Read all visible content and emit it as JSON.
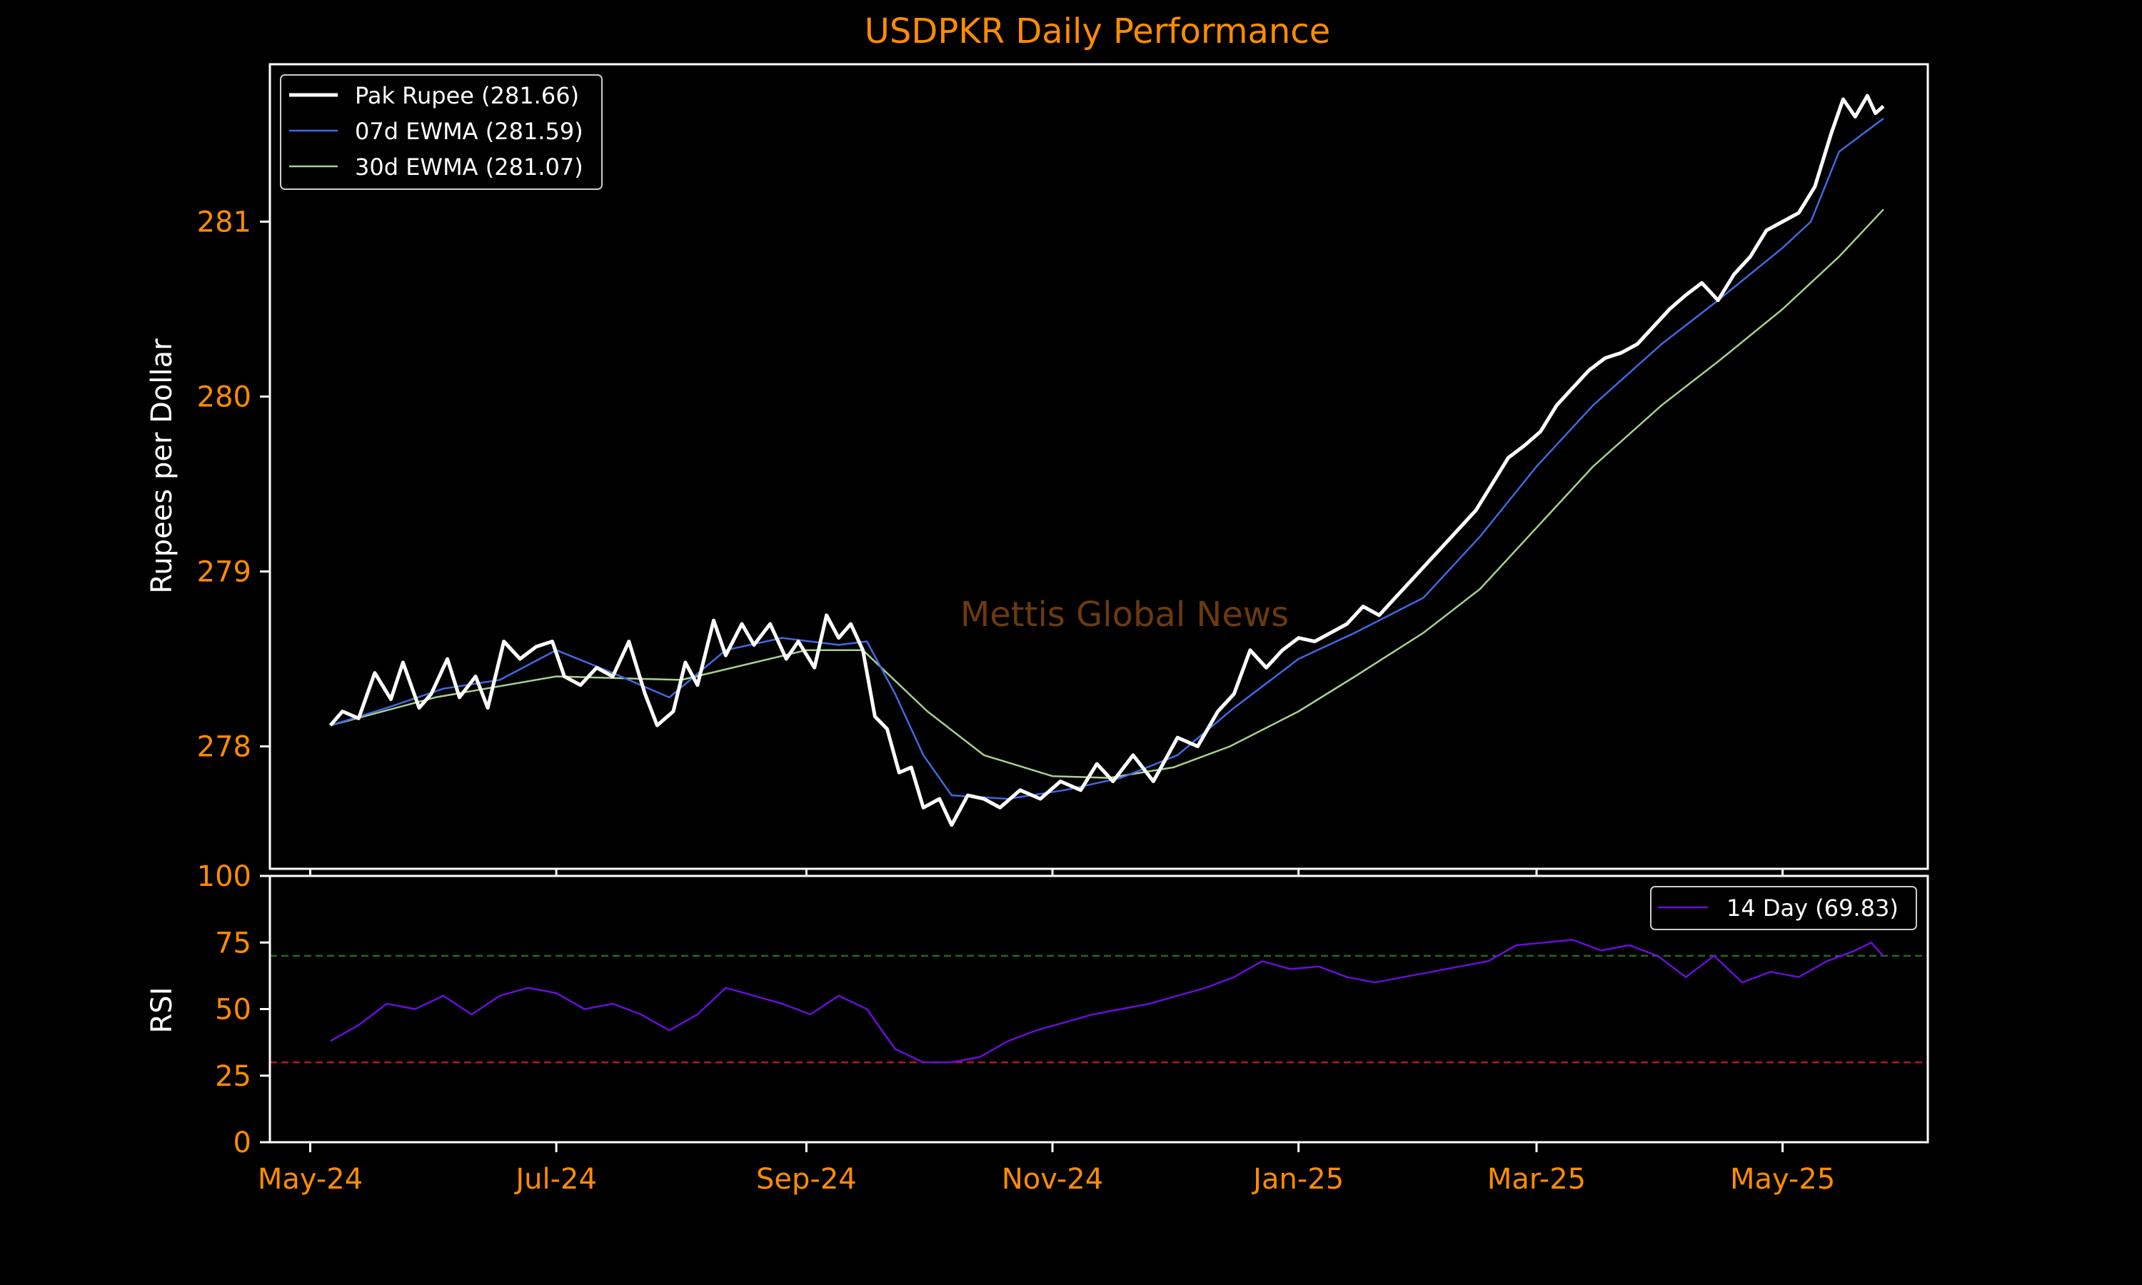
{
  "colors": {
    "background": "#000000",
    "accent": "#ff8c00",
    "axis": "#ffffff",
    "price": "#ffffff",
    "ewma7": "#4169e1",
    "ewma30": "#a8d08d",
    "rsi": "#6a0dd9",
    "overbought": "#1f6b1f",
    "oversold": "#c0102a",
    "watermark": "#6b3a10"
  },
  "chart_data": [
    {
      "type": "line",
      "title": "USDPKR Daily Performance",
      "ylabel": "Rupees per Dollar",
      "ylim": [
        277.3,
        281.9
      ],
      "y_ticks": [
        278,
        279,
        280,
        281
      ],
      "grid": false,
      "legend_position": "top-left",
      "x_type": "date",
      "x_range": [
        "2024-04-21",
        "2025-06-06"
      ],
      "x_ticks": [
        {
          "date": "2024-05-01",
          "label": "May-24"
        },
        {
          "date": "2024-07-01",
          "label": "Jul-24"
        },
        {
          "date": "2024-09-01",
          "label": "Sep-24"
        },
        {
          "date": "2024-11-01",
          "label": "Nov-24"
        },
        {
          "date": "2025-01-01",
          "label": "Jan-25"
        },
        {
          "date": "2025-03-01",
          "label": "Mar-25"
        },
        {
          "date": "2025-05-01",
          "label": "May-25"
        }
      ],
      "series": [
        {
          "name": "Pak Rupee (281.66)",
          "points": [
            [
              "2024-05-06",
              278.12
            ],
            [
              "2024-05-09",
              278.2
            ],
            [
              "2024-05-13",
              278.16
            ],
            [
              "2024-05-17",
              278.42
            ],
            [
              "2024-05-21",
              278.27
            ],
            [
              "2024-05-24",
              278.48
            ],
            [
              "2024-05-28",
              278.22
            ],
            [
              "2024-05-31",
              278.3
            ],
            [
              "2024-06-04",
              278.5
            ],
            [
              "2024-06-07",
              278.28
            ],
            [
              "2024-06-11",
              278.4
            ],
            [
              "2024-06-14",
              278.22
            ],
            [
              "2024-06-18",
              278.6
            ],
            [
              "2024-06-22",
              278.5
            ],
            [
              "2024-06-26",
              278.57
            ],
            [
              "2024-06-30",
              278.6
            ],
            [
              "2024-07-03",
              278.4
            ],
            [
              "2024-07-07",
              278.35
            ],
            [
              "2024-07-11",
              278.45
            ],
            [
              "2024-07-15",
              278.4
            ],
            [
              "2024-07-19",
              278.6
            ],
            [
              "2024-07-23",
              278.3
            ],
            [
              "2024-07-26",
              278.12
            ],
            [
              "2024-07-30",
              278.2
            ],
            [
              "2024-08-02",
              278.48
            ],
            [
              "2024-08-05",
              278.35
            ],
            [
              "2024-08-09",
              278.72
            ],
            [
              "2024-08-12",
              278.52
            ],
            [
              "2024-08-16",
              278.7
            ],
            [
              "2024-08-19",
              278.58
            ],
            [
              "2024-08-23",
              278.7
            ],
            [
              "2024-08-27",
              278.5
            ],
            [
              "2024-08-30",
              278.6
            ],
            [
              "2024-09-03",
              278.45
            ],
            [
              "2024-09-06",
              278.75
            ],
            [
              "2024-09-09",
              278.62
            ],
            [
              "2024-09-12",
              278.7
            ],
            [
              "2024-09-15",
              278.55
            ],
            [
              "2024-09-18",
              278.17
            ],
            [
              "2024-09-21",
              278.1
            ],
            [
              "2024-09-24",
              277.85
            ],
            [
              "2024-09-27",
              277.88
            ],
            [
              "2024-09-30",
              277.65
            ],
            [
              "2024-10-04",
              277.7
            ],
            [
              "2024-10-07",
              277.55
            ],
            [
              "2024-10-11",
              277.72
            ],
            [
              "2024-10-15",
              277.7
            ],
            [
              "2024-10-19",
              277.65
            ],
            [
              "2024-10-24",
              277.75
            ],
            [
              "2024-10-29",
              277.7
            ],
            [
              "2024-11-03",
              277.8
            ],
            [
              "2024-11-08",
              277.75
            ],
            [
              "2024-11-12",
              277.9
            ],
            [
              "2024-11-16",
              277.8
            ],
            [
              "2024-11-21",
              277.95
            ],
            [
              "2024-11-26",
              277.8
            ],
            [
              "2024-12-02",
              278.05
            ],
            [
              "2024-12-07",
              278.0
            ],
            [
              "2024-12-12",
              278.2
            ],
            [
              "2024-12-16",
              278.3
            ],
            [
              "2024-12-20",
              278.55
            ],
            [
              "2024-12-24",
              278.45
            ],
            [
              "2024-12-28",
              278.55
            ],
            [
              "2025-01-01",
              278.62
            ],
            [
              "2025-01-05",
              278.6
            ],
            [
              "2025-01-09",
              278.65
            ],
            [
              "2025-01-13",
              278.7
            ],
            [
              "2025-01-17",
              278.8
            ],
            [
              "2025-01-21",
              278.75
            ],
            [
              "2025-01-25",
              278.85
            ],
            [
              "2025-01-29",
              278.95
            ],
            [
              "2025-02-02",
              279.05
            ],
            [
              "2025-02-06",
              279.15
            ],
            [
              "2025-02-10",
              279.25
            ],
            [
              "2025-02-14",
              279.35
            ],
            [
              "2025-02-18",
              279.5
            ],
            [
              "2025-02-22",
              279.65
            ],
            [
              "2025-02-26",
              279.72
            ],
            [
              "2025-03-02",
              279.8
            ],
            [
              "2025-03-06",
              279.95
            ],
            [
              "2025-03-10",
              280.05
            ],
            [
              "2025-03-14",
              280.15
            ],
            [
              "2025-03-18",
              280.22
            ],
            [
              "2025-03-22",
              280.25
            ],
            [
              "2025-03-26",
              280.3
            ],
            [
              "2025-03-30",
              280.4
            ],
            [
              "2025-04-03",
              280.5
            ],
            [
              "2025-04-07",
              280.58
            ],
            [
              "2025-04-11",
              280.65
            ],
            [
              "2025-04-15",
              280.55
            ],
            [
              "2025-04-19",
              280.7
            ],
            [
              "2025-04-23",
              280.8
            ],
            [
              "2025-04-27",
              280.95
            ],
            [
              "2025-05-01",
              281.0
            ],
            [
              "2025-05-05",
              281.05
            ],
            [
              "2025-05-09",
              281.2
            ],
            [
              "2025-05-13",
              281.5
            ],
            [
              "2025-05-16",
              281.7
            ],
            [
              "2025-05-19",
              281.6
            ],
            [
              "2025-05-22",
              281.72
            ],
            [
              "2025-05-24",
              281.62
            ],
            [
              "2025-05-26",
              281.66
            ]
          ]
        },
        {
          "name": "07d EWMA (281.59)",
          "points": [
            [
              "2024-05-06",
              278.12
            ],
            [
              "2024-05-20",
              278.22
            ],
            [
              "2024-06-03",
              278.33
            ],
            [
              "2024-06-17",
              278.38
            ],
            [
              "2024-07-01",
              278.55
            ],
            [
              "2024-07-15",
              278.42
            ],
            [
              "2024-07-29",
              278.28
            ],
            [
              "2024-08-12",
              278.55
            ],
            [
              "2024-08-26",
              278.62
            ],
            [
              "2024-09-09",
              278.58
            ],
            [
              "2024-09-16",
              278.6
            ],
            [
              "2024-09-23",
              278.3
            ],
            [
              "2024-09-30",
              277.95
            ],
            [
              "2024-10-07",
              277.72
            ],
            [
              "2024-10-21",
              277.7
            ],
            [
              "2024-11-04",
              277.75
            ],
            [
              "2024-11-18",
              277.82
            ],
            [
              "2024-12-02",
              277.95
            ],
            [
              "2024-12-16",
              278.22
            ],
            [
              "2025-01-01",
              278.5
            ],
            [
              "2025-01-15",
              278.65
            ],
            [
              "2025-02-01",
              278.85
            ],
            [
              "2025-02-15",
              279.2
            ],
            [
              "2025-03-01",
              279.6
            ],
            [
              "2025-03-15",
              279.95
            ],
            [
              "2025-04-01",
              280.3
            ],
            [
              "2025-04-15",
              280.55
            ],
            [
              "2025-05-01",
              280.85
            ],
            [
              "2025-05-08",
              281.0
            ],
            [
              "2025-05-15",
              281.4
            ],
            [
              "2025-05-26",
              281.59
            ]
          ]
        },
        {
          "name": "30d EWMA (281.07)",
          "points": [
            [
              "2024-05-06",
              278.12
            ],
            [
              "2024-06-01",
              278.28
            ],
            [
              "2024-07-01",
              278.4
            ],
            [
              "2024-08-01",
              278.38
            ],
            [
              "2024-09-01",
              278.55
            ],
            [
              "2024-09-15",
              278.55
            ],
            [
              "2024-10-01",
              278.2
            ],
            [
              "2024-10-15",
              277.95
            ],
            [
              "2024-11-01",
              277.83
            ],
            [
              "2024-11-15",
              277.82
            ],
            [
              "2024-12-01",
              277.88
            ],
            [
              "2024-12-15",
              278.0
            ],
            [
              "2025-01-01",
              278.2
            ],
            [
              "2025-01-15",
              278.4
            ],
            [
              "2025-02-01",
              278.65
            ],
            [
              "2025-02-15",
              278.9
            ],
            [
              "2025-03-01",
              279.25
            ],
            [
              "2025-03-15",
              279.6
            ],
            [
              "2025-04-01",
              279.95
            ],
            [
              "2025-04-15",
              280.2
            ],
            [
              "2025-05-01",
              280.5
            ],
            [
              "2025-05-15",
              280.8
            ],
            [
              "2025-05-26",
              281.07
            ]
          ]
        }
      ]
    },
    {
      "type": "line",
      "ylabel": "RSI",
      "ylim": [
        0,
        100
      ],
      "y_ticks": [
        0,
        25,
        50,
        75,
        100
      ],
      "grid": false,
      "legend_position": "top-right",
      "reference_lines": [
        70,
        30
      ],
      "series": [
        {
          "name": "14 Day (69.83)",
          "points": [
            [
              "2024-05-06",
              38
            ],
            [
              "2024-05-13",
              44
            ],
            [
              "2024-05-20",
              52
            ],
            [
              "2024-05-27",
              50
            ],
            [
              "2024-06-03",
              55
            ],
            [
              "2024-06-10",
              48
            ],
            [
              "2024-06-17",
              55
            ],
            [
              "2024-06-24",
              58
            ],
            [
              "2024-07-01",
              56
            ],
            [
              "2024-07-08",
              50
            ],
            [
              "2024-07-15",
              52
            ],
            [
              "2024-07-22",
              48
            ],
            [
              "2024-07-29",
              42
            ],
            [
              "2024-08-05",
              48
            ],
            [
              "2024-08-12",
              58
            ],
            [
              "2024-08-19",
              55
            ],
            [
              "2024-08-26",
              52
            ],
            [
              "2024-09-02",
              48
            ],
            [
              "2024-09-09",
              55
            ],
            [
              "2024-09-16",
              50
            ],
            [
              "2024-09-23",
              35
            ],
            [
              "2024-09-30",
              30
            ],
            [
              "2024-10-07",
              30
            ],
            [
              "2024-10-14",
              32
            ],
            [
              "2024-10-21",
              38
            ],
            [
              "2024-10-28",
              42
            ],
            [
              "2024-11-04",
              45
            ],
            [
              "2024-11-11",
              48
            ],
            [
              "2024-11-18",
              50
            ],
            [
              "2024-11-25",
              52
            ],
            [
              "2024-12-02",
              55
            ],
            [
              "2024-12-09",
              58
            ],
            [
              "2024-12-16",
              62
            ],
            [
              "2024-12-23",
              68
            ],
            [
              "2024-12-30",
              65
            ],
            [
              "2025-01-06",
              66
            ],
            [
              "2025-01-13",
              62
            ],
            [
              "2025-01-20",
              60
            ],
            [
              "2025-01-27",
              62
            ],
            [
              "2025-02-03",
              64
            ],
            [
              "2025-02-10",
              66
            ],
            [
              "2025-02-17",
              68
            ],
            [
              "2025-02-24",
              74
            ],
            [
              "2025-03-03",
              75
            ],
            [
              "2025-03-10",
              76
            ],
            [
              "2025-03-17",
              72
            ],
            [
              "2025-03-24",
              74
            ],
            [
              "2025-03-31",
              70
            ],
            [
              "2025-04-07",
              62
            ],
            [
              "2025-04-14",
              70
            ],
            [
              "2025-04-21",
              60
            ],
            [
              "2025-04-28",
              64
            ],
            [
              "2025-05-05",
              62
            ],
            [
              "2025-05-12",
              68
            ],
            [
              "2025-05-19",
              72
            ],
            [
              "2025-05-23",
              75
            ],
            [
              "2025-05-26",
              69.83
            ]
          ]
        }
      ]
    }
  ],
  "watermark": "Mettis Global News"
}
